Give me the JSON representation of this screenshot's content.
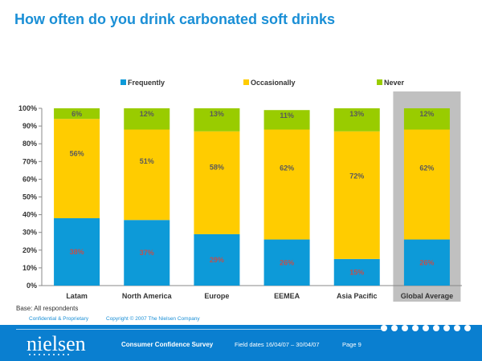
{
  "title": "How often do you drink carbonated soft drinks",
  "base_note": "Base: All respondents",
  "footer": {
    "confidential": "Confidential & Proprietary",
    "copyright": "Copyright © 2007 The Nielsen Company",
    "logo": "nielsen",
    "survey": "Consumer Confidence Survey",
    "field_dates": "Field dates 16/04/07 – 30/04/07",
    "page": "Page 9"
  },
  "colors": {
    "frequently": "#0d9ad8",
    "occasionally": "#ffcc00",
    "never": "#99cc00",
    "highlight": "#c0c0c0",
    "footer": "#0a7fd0",
    "title": "#1a8fd6"
  },
  "chart_data": {
    "type": "bar",
    "stacked": true,
    "categories": [
      "Latam",
      "North America",
      "Europe",
      "EEMEA",
      "Asia Pacific",
      "Global Average"
    ],
    "series": [
      {
        "name": "Frequently",
        "values": [
          38,
          37,
          29,
          26,
          15,
          26
        ],
        "labels": [
          "38%",
          "37%",
          "29%",
          "26%",
          "15%",
          "26%"
        ]
      },
      {
        "name": "Occasionally",
        "values": [
          56,
          51,
          58,
          62,
          72,
          62
        ],
        "labels": [
          "56%",
          "51%",
          "58%",
          "62%",
          "72%",
          "62%"
        ]
      },
      {
        "name": "Never",
        "values": [
          6,
          12,
          13,
          11,
          13,
          12
        ],
        "labels": [
          "6%",
          "12%",
          "13%",
          "11%",
          "13%",
          "12%"
        ]
      }
    ],
    "yticks": [
      "0%",
      "10%",
      "20%",
      "30%",
      "40%",
      "50%",
      "60%",
      "70%",
      "80%",
      "90%",
      "100%"
    ],
    "ylim": [
      0,
      100
    ],
    "highlighted_category": "Global Average",
    "legend_position": "top"
  }
}
